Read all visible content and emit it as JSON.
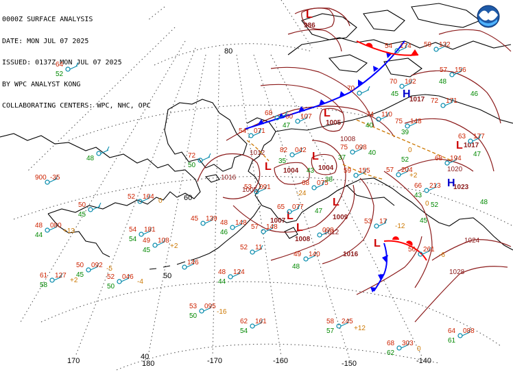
{
  "header": {
    "line1": "0000Z SURFACE ANALYSIS",
    "line2": "DATE: MON JUL 07 2025",
    "line3": "ISSUED: 0137Z MON JUL 07 2025",
    "line4": "BY WPC ANALYST KONG",
    "line5": "COLLABORATING CENTERS: WPC, NHC, OPC"
  },
  "logo": {
    "name": "noaa-logo"
  },
  "graticule": {
    "lat_labels": [
      "80",
      "60",
      "50"
    ],
    "lon_labels": [
      "170",
      "180",
      "-170",
      "-160",
      "-150",
      "-140"
    ],
    "lon_label_extra": "40"
  },
  "colors": {
    "isobar": "#8b1a1a",
    "pressure_label": "#8b1a1a",
    "high": "#0000cc",
    "low": "#cc0000",
    "temperature": "#cc2200",
    "dewpoint": "#008800",
    "station": "#0088aa",
    "pressure_tendency": "#cc7700",
    "cold_front": "#0000ff",
    "warm_front": "#ff0000",
    "trough": "#cc7700",
    "coast": "#000000",
    "grid": "#333333"
  },
  "pressure_centers": [
    {
      "type": "L",
      "value": "986"
    },
    {
      "type": "L",
      "value": "1005"
    },
    {
      "type": "L",
      "value": "1004"
    },
    {
      "type": "L",
      "value": "1004"
    },
    {
      "type": "L",
      "value": "1009"
    },
    {
      "type": "L",
      "value": "1007"
    },
    {
      "type": "L",
      "value": "1008"
    },
    {
      "type": "L",
      "value": "1016"
    },
    {
      "type": "L",
      "value": "1017"
    },
    {
      "type": "L",
      "value": ""
    },
    {
      "type": "H",
      "value": "1017"
    },
    {
      "type": "H",
      "value": "1023"
    }
  ],
  "isobar_labels": [
    "1016",
    "1012",
    "1012",
    "1008",
    "1024",
    "1028",
    "1020",
    "1005"
  ],
  "stations": [
    {
      "t": "64",
      "d": "52",
      "p": ""
    },
    {
      "t": "",
      "d": "48",
      "p": ""
    },
    {
      "t": "900",
      "d": "",
      "p": "-35"
    },
    {
      "t": "50",
      "d": "45",
      "p": ""
    },
    {
      "t": "48",
      "d": "44",
      "p": "080"
    },
    {
      "t": "61",
      "d": "58",
      "p": "127"
    },
    {
      "t": "50",
      "d": "45",
      "p": "092"
    },
    {
      "t": "52",
      "d": "50",
      "p": "046"
    },
    {
      "t": "52",
      "d": "",
      "p": "164"
    },
    {
      "t": "54",
      "d": "54",
      "p": "181"
    },
    {
      "t": "49",
      "d": "45",
      "p": "108"
    },
    {
      "t": "",
      "d": "",
      "p": "146"
    },
    {
      "t": "72",
      "d": "50",
      "p": ""
    },
    {
      "t": "45",
      "d": "",
      "p": "139"
    },
    {
      "t": "48",
      "d": "46",
      "p": "148"
    },
    {
      "t": "57",
      "d": "",
      "p": "148"
    },
    {
      "t": "52",
      "d": "",
      "p": "11"
    },
    {
      "t": "48",
      "d": "44",
      "p": "124"
    },
    {
      "t": "53",
      "d": "50",
      "p": "095"
    },
    {
      "t": "62",
      "d": "54",
      "p": "161"
    },
    {
      "t": "58",
      "d": "57",
      "p": "245"
    },
    {
      "t": "68",
      "d": "62",
      "p": "303"
    },
    {
      "t": "64",
      "d": "61",
      "p": "088"
    },
    {
      "t": "56",
      "d": "",
      "p": "261"
    },
    {
      "t": "53",
      "d": "",
      "p": "17"
    },
    {
      "t": "57",
      "d": "",
      "p": "204"
    },
    {
      "t": "66",
      "d": "",
      "p": "213"
    },
    {
      "t": "68",
      "d": "",
      "p": "194"
    },
    {
      "t": "63",
      "d": "",
      "p": "177"
    },
    {
      "t": "72",
      "d": "",
      "p": "171"
    },
    {
      "t": "57",
      "d": "",
      "p": "156"
    },
    {
      "t": "59",
      "d": "",
      "p": "132"
    },
    {
      "t": "70",
      "d": "",
      "p": "162"
    },
    {
      "t": "74",
      "d": "",
      "p": "110"
    },
    {
      "t": "75",
      "d": "",
      "p": "148"
    },
    {
      "t": "75",
      "d": "",
      "p": "098"
    },
    {
      "t": "82",
      "d": "",
      "p": "042"
    },
    {
      "t": "68",
      "d": "",
      "p": "075"
    },
    {
      "t": "53",
      "d": "",
      "p": "091"
    },
    {
      "t": "65",
      "d": "",
      "p": "077"
    },
    {
      "t": "49",
      "d": "",
      "p": "140"
    },
    {
      "t": "",
      "d": "",
      "p": "098"
    },
    {
      "t": "59",
      "d": "",
      "p": "155"
    },
    {
      "t": "60",
      "d": "",
      "p": "107"
    },
    {
      "t": "70",
      "d": "",
      "p": ""
    },
    {
      "t": "54",
      "d": "",
      "p": "071"
    },
    {
      "t": "54",
      "d": "",
      "p": "174"
    },
    {
      "t": "68",
      "d": "",
      "p": ""
    }
  ],
  "tendency_labels": [
    "+13",
    "+2",
    "-5",
    "-4",
    "+2",
    "-16",
    "+12",
    "0",
    "-6",
    "-12",
    "+2",
    "0",
    "-24",
    "0",
    "0"
  ],
  "dewpoints_extra": [
    "47",
    "35",
    "43",
    "40",
    "38",
    "39",
    "52",
    "48",
    "45",
    "48",
    "52",
    "40",
    "37",
    "47",
    "43",
    "45",
    "47",
    "48",
    "46"
  ]
}
